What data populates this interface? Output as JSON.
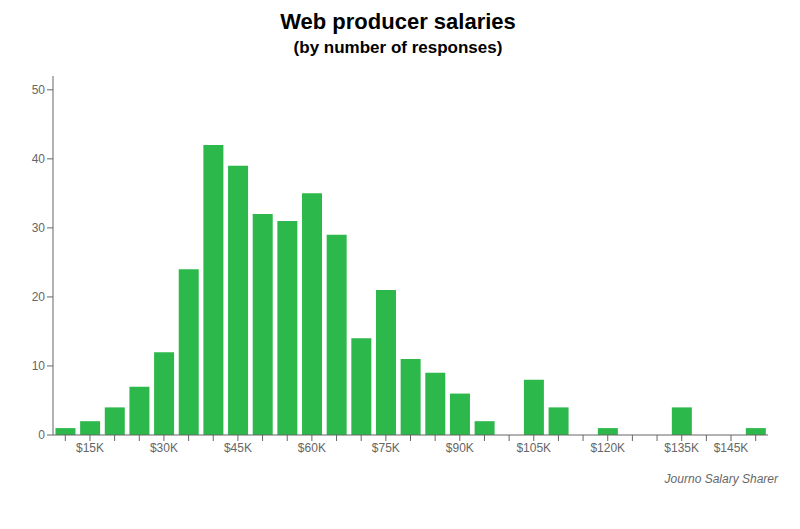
{
  "chart_data": {
    "type": "bar",
    "title": "Web producer salaries",
    "subtitle": "(by number of responses)",
    "categories": [
      null,
      "$15K",
      null,
      null,
      "$30K",
      null,
      null,
      "$45K",
      null,
      null,
      "$60K",
      null,
      null,
      "$75K",
      null,
      null,
      "$90K",
      null,
      null,
      "$105K",
      null,
      null,
      "$120K",
      null,
      null,
      "$135K",
      null,
      "$145K",
      null
    ],
    "values": [
      1,
      2,
      4,
      7,
      12,
      24,
      42,
      39,
      32,
      31,
      35,
      29,
      14,
      21,
      11,
      9,
      6,
      2,
      0,
      8,
      4,
      0,
      1,
      0,
      0,
      4,
      0,
      0,
      1
    ],
    "color": "#2db84b",
    "ylim": [
      0,
      52
    ],
    "yticks": [
      0,
      10,
      20,
      30,
      40,
      50
    ],
    "grid": false,
    "annotations": [
      "Journo Salary Sharer"
    ]
  }
}
